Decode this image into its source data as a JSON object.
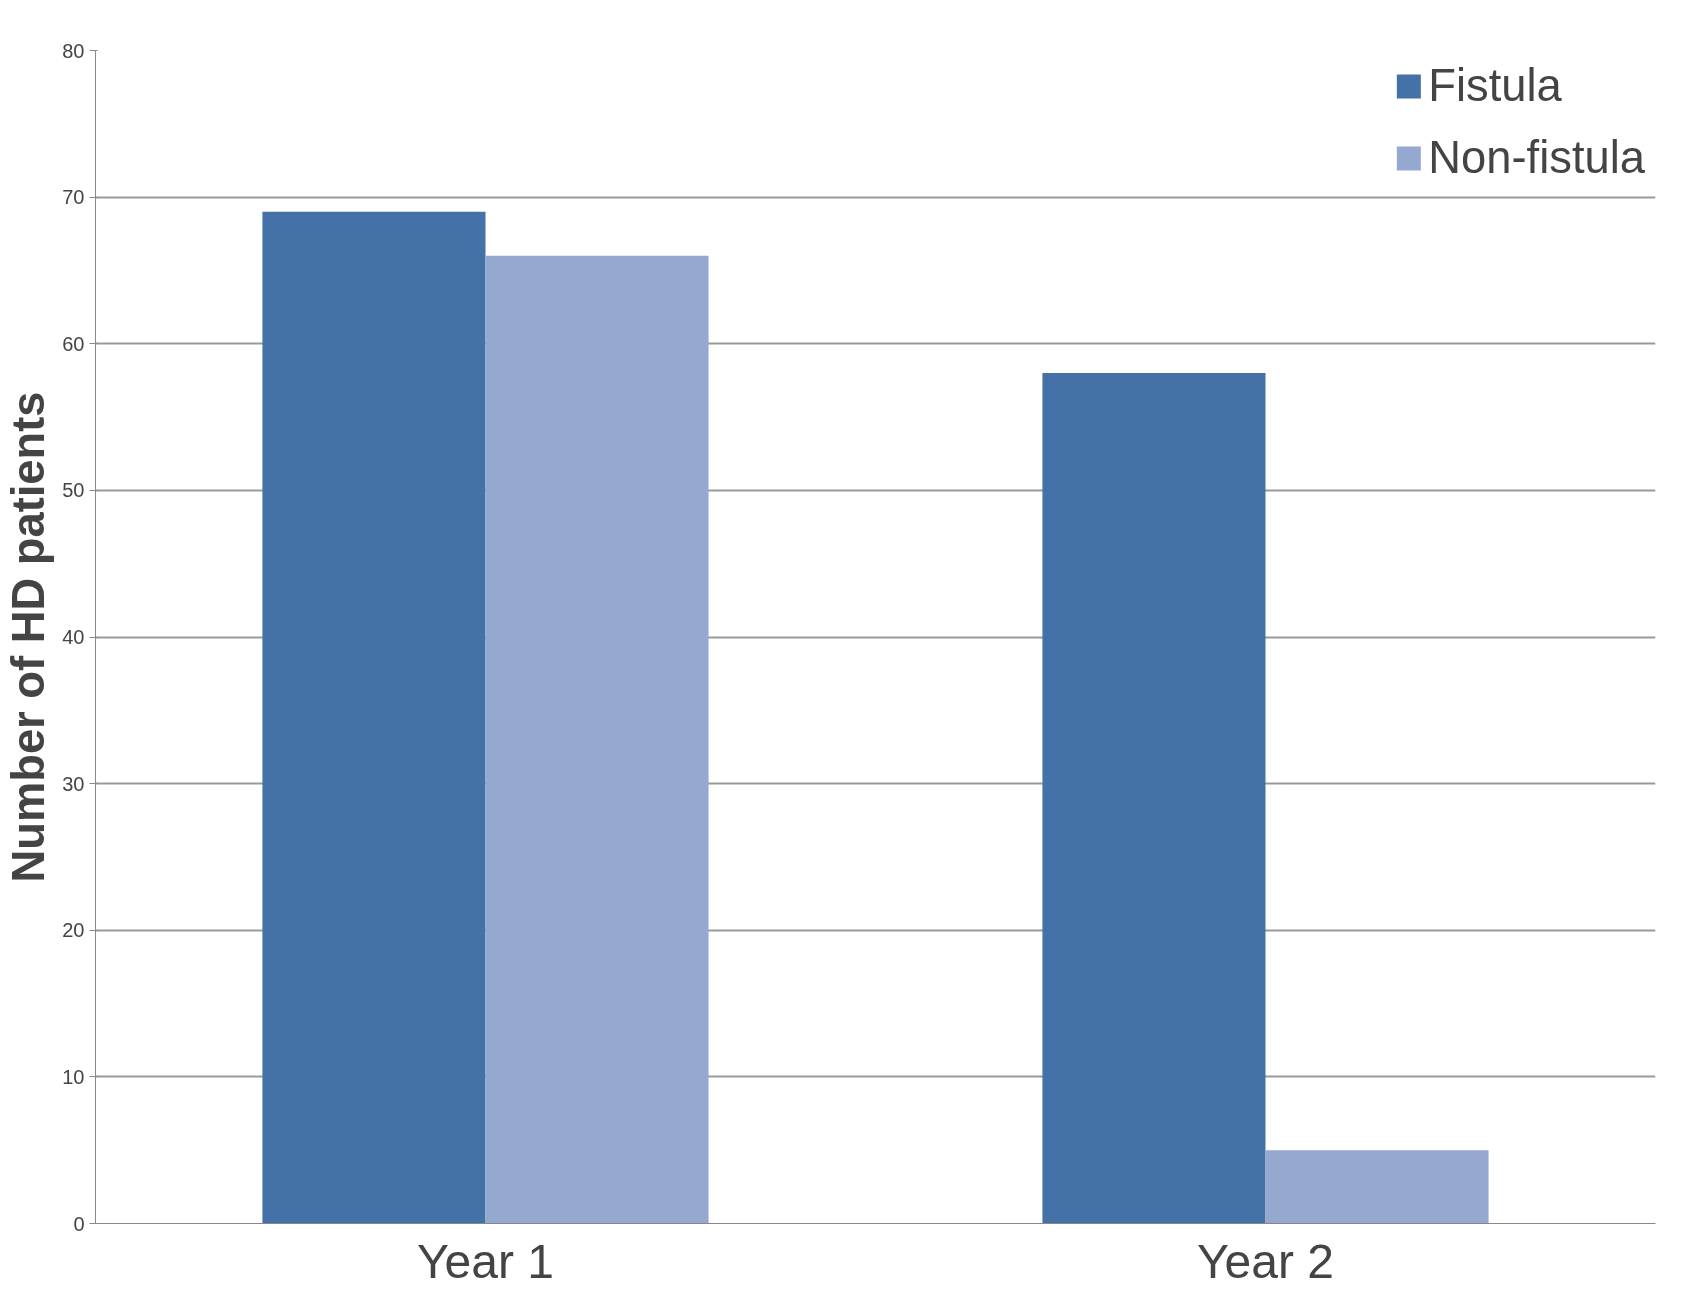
{
  "chart_data": {
    "type": "bar",
    "ylabel": "Number of HD patients",
    "categories": [
      "Year 1",
      "Year 2"
    ],
    "series": [
      {
        "name": "Fistula",
        "color": "#4472a8",
        "values": [
          69,
          58
        ]
      },
      {
        "name": "Non-fistula",
        "color": "#95a9d0",
        "values": [
          66,
          5
        ]
      }
    ],
    "ylim": [
      0,
      80
    ],
    "yticks": [
      0,
      10,
      20,
      30,
      40,
      50,
      60,
      70,
      80
    ],
    "grid": "y",
    "legend": "top right"
  }
}
